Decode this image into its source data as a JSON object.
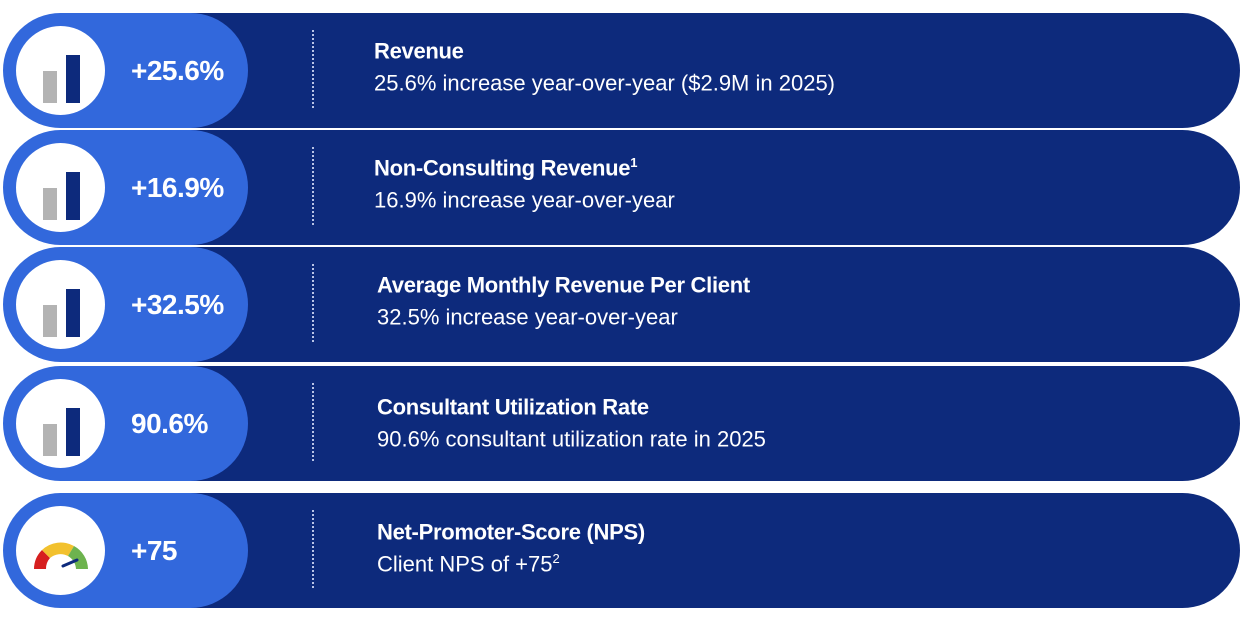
{
  "kpis": [
    {
      "metric": "+25.6%",
      "title": "Revenue",
      "title_sup": "",
      "description": "25.6% increase year-over-year ($2.9M in 2025)",
      "desc_sup": "",
      "icon": "bar-chart-icon"
    },
    {
      "metric": "+16.9%",
      "title": "Non-Consulting Revenue",
      "title_sup": "1",
      "description": "16.9% increase year-over-year",
      "desc_sup": "",
      "icon": "bar-chart-icon"
    },
    {
      "metric": "+32.5%",
      "title": "Average Monthly Revenue Per Client",
      "title_sup": "",
      "description": "32.5% increase year-over-year",
      "desc_sup": "",
      "icon": "bar-chart-icon"
    },
    {
      "metric": "90.6%",
      "title": "Consultant Utilization Rate",
      "title_sup": "",
      "description": "90.6% consultant utilization rate in 2025",
      "desc_sup": "",
      "icon": "bar-chart-icon"
    },
    {
      "metric": "+75",
      "title": "Net-Promoter-Score (NPS)",
      "title_sup": "",
      "description": "Client NPS of +75",
      "desc_sup": "2",
      "icon": "gauge-icon"
    }
  ],
  "colors": {
    "pill": "#3268dc",
    "bar_dark": "#0d2a7c",
    "bar_icon_gray": "#b3b3b3",
    "bar_icon_blue": "#0d2a7c",
    "gauge_red": "#d61f1f",
    "gauge_yellow": "#f2c12e",
    "gauge_green": "#6db34e"
  }
}
